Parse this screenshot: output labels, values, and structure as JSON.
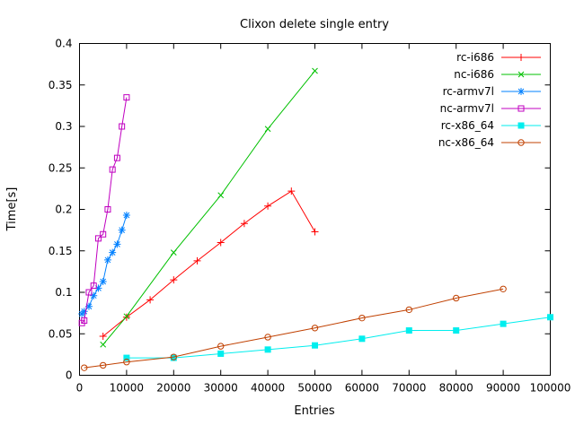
{
  "chart_data": {
    "type": "line",
    "title": "Clixon delete single entry",
    "xlabel": "Entries",
    "ylabel": "Time[s]",
    "xlim": [
      0,
      100000
    ],
    "ylim": [
      0,
      0.4
    ],
    "grid": false,
    "legend_position": "top-right-inside",
    "x_ticks": {
      "values": [
        0,
        10000,
        20000,
        30000,
        40000,
        50000,
        60000,
        70000,
        80000,
        90000,
        100000
      ],
      "labels": [
        "0",
        "10000",
        "20000",
        "30000",
        "40000",
        "50000",
        "60000",
        "70000",
        "80000",
        "90000",
        "100000"
      ]
    },
    "y_ticks": {
      "values": [
        0,
        0.05,
        0.1,
        0.15,
        0.2,
        0.25,
        0.3,
        0.35,
        0.4
      ],
      "labels": [
        "0",
        "0.05",
        "0.1",
        "0.15",
        "0.2",
        "0.25",
        "0.3",
        "0.35",
        "0.4"
      ]
    },
    "series": [
      {
        "name": "rc-i686",
        "color": "#ff0000",
        "marker": "plus",
        "x": [
          5000,
          10000,
          15000,
          20000,
          25000,
          30000,
          35000,
          40000,
          45000,
          50000
        ],
        "y": [
          0.047,
          0.07,
          0.091,
          0.115,
          0.138,
          0.16,
          0.183,
          0.204,
          0.222,
          0.173
        ]
      },
      {
        "name": "nc-i686",
        "color": "#00c000",
        "marker": "cross",
        "x": [
          5000,
          10000,
          20000,
          30000,
          40000,
          50000
        ],
        "y": [
          0.037,
          0.071,
          0.148,
          0.217,
          0.297,
          0.367
        ]
      },
      {
        "name": "rc-armv7l",
        "color": "#0080ff",
        "marker": "star",
        "x": [
          500,
          1000,
          2000,
          3000,
          4000,
          5000,
          6000,
          7000,
          8000,
          9000,
          10000
        ],
        "y": [
          0.074,
          0.077,
          0.083,
          0.096,
          0.105,
          0.113,
          0.139,
          0.148,
          0.158,
          0.175,
          0.193
        ]
      },
      {
        "name": "nc-armv7l",
        "color": "#c000c0",
        "marker": "square-open",
        "x": [
          500,
          1000,
          2000,
          3000,
          4000,
          5000,
          6000,
          7000,
          8000,
          9000,
          10000
        ],
        "y": [
          0.063,
          0.066,
          0.1,
          0.108,
          0.165,
          0.17,
          0.2,
          0.248,
          0.262,
          0.3,
          0.335
        ]
      },
      {
        "name": "rc-x86_64",
        "color": "#00eeee",
        "marker": "square-filled",
        "x": [
          10000,
          20000,
          30000,
          40000,
          50000,
          60000,
          70000,
          80000,
          90000,
          100000
        ],
        "y": [
          0.021,
          0.021,
          0.026,
          0.031,
          0.036,
          0.044,
          0.054,
          0.054,
          0.062,
          0.07
        ]
      },
      {
        "name": "nc-x86_64",
        "color": "#c04000",
        "marker": "circle-open",
        "x": [
          1000,
          5000,
          10000,
          20000,
          30000,
          40000,
          50000,
          60000,
          70000,
          80000,
          90000
        ],
        "y": [
          0.009,
          0.012,
          0.016,
          0.022,
          0.035,
          0.046,
          0.057,
          0.069,
          0.079,
          0.093,
          0.104
        ]
      }
    ]
  }
}
